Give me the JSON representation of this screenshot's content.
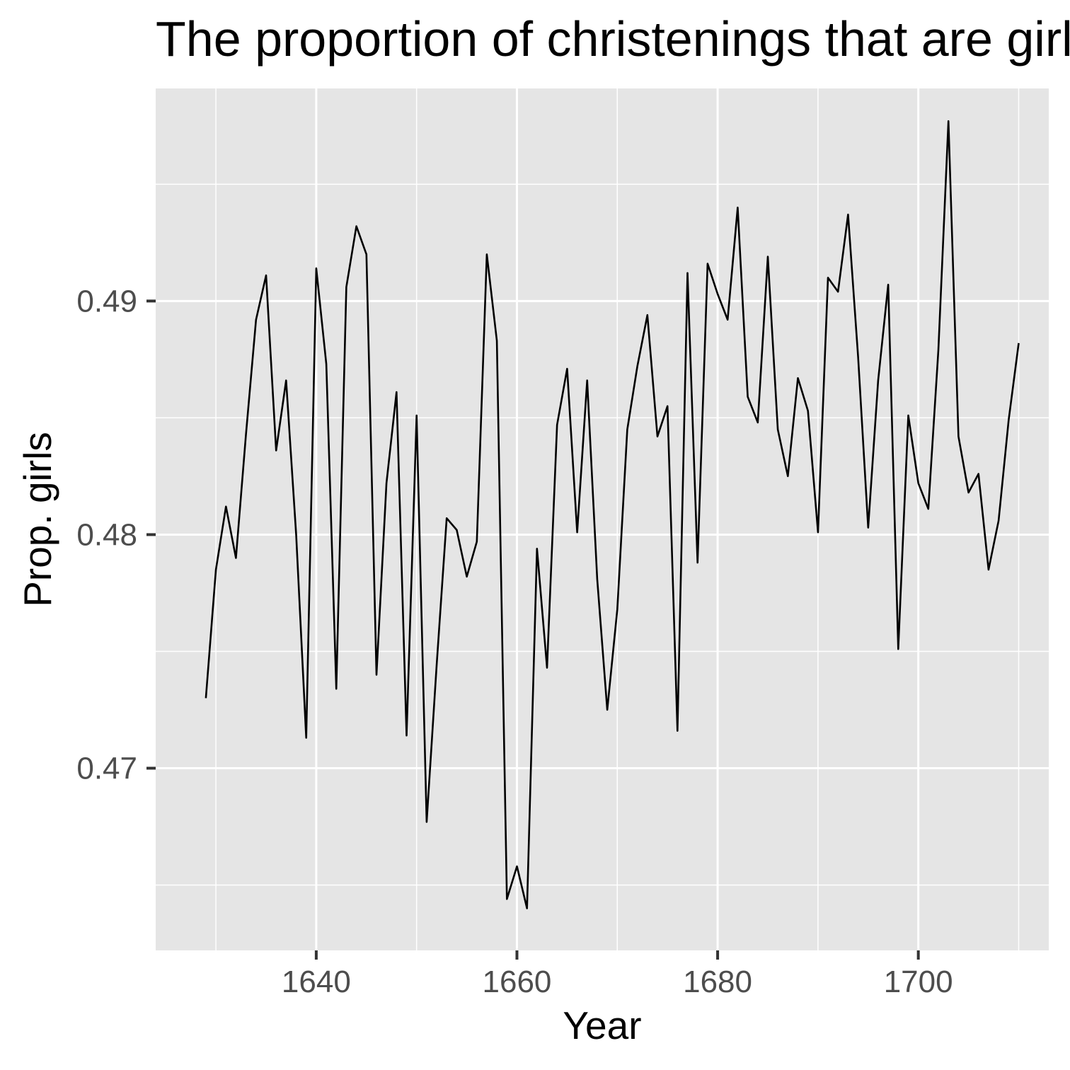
{
  "chart_data": {
    "type": "line",
    "title": "The proportion of christenings that are girls",
    "xlabel": "Year",
    "ylabel": "Prop. girls",
    "xlim": [
      1624,
      1713
    ],
    "ylim": [
      0.4622,
      0.4991
    ],
    "x_ticks": [
      1640,
      1660,
      1680,
      1700
    ],
    "x_tick_labels": [
      "1640",
      "1660",
      "1680",
      "1700"
    ],
    "x_minor_ticks": [
      1630,
      1650,
      1670,
      1690,
      1710
    ],
    "y_ticks": [
      0.47,
      0.48,
      0.49
    ],
    "y_tick_labels": [
      "0.47",
      "0.48",
      "0.49"
    ],
    "y_minor_ticks": [
      0.465,
      0.475,
      0.485,
      0.495
    ],
    "grid": true,
    "panel_background": "#e5e5e5",
    "grid_color": "#ffffff",
    "line_color": "#000000",
    "series": [
      {
        "x": [
          1629,
          1630,
          1631,
          1632,
          1633,
          1634,
          1635,
          1636,
          1637,
          1638,
          1639,
          1640,
          1641,
          1642,
          1643,
          1644,
          1645,
          1646,
          1647,
          1648,
          1649,
          1650,
          1651,
          1652,
          1653,
          1654,
          1655,
          1656,
          1657,
          1658,
          1659,
          1660,
          1661,
          1662,
          1663,
          1664,
          1665,
          1666,
          1667,
          1668,
          1669,
          1670,
          1671,
          1672,
          1673,
          1674,
          1675,
          1676,
          1677,
          1678,
          1679,
          1680,
          1681,
          1682,
          1683,
          1684,
          1685,
          1686,
          1687,
          1688,
          1689,
          1690,
          1691,
          1692,
          1693,
          1694,
          1695,
          1696,
          1697,
          1698,
          1699,
          1700,
          1701,
          1702,
          1703,
          1704,
          1705,
          1706,
          1707,
          1708,
          1709,
          1710
        ],
        "values": [
          0.473,
          0.4785,
          0.4812,
          0.479,
          0.4843,
          0.4892,
          0.4911,
          0.4836,
          0.4866,
          0.48,
          0.4713,
          0.4914,
          0.4873,
          0.4734,
          0.4906,
          0.4932,
          0.492,
          0.474,
          0.4822,
          0.4861,
          0.4714,
          0.4851,
          0.4677,
          0.4744,
          0.4807,
          0.4802,
          0.4782,
          0.4797,
          0.492,
          0.4883,
          0.4644,
          0.4658,
          0.464,
          0.4794,
          0.4743,
          0.4847,
          0.4871,
          0.4801,
          0.4866,
          0.4781,
          0.4725,
          0.4768,
          0.4845,
          0.4872,
          0.4894,
          0.4842,
          0.4855,
          0.4716,
          0.4912,
          0.4788,
          0.4916,
          0.4903,
          0.4892,
          0.494,
          0.4859,
          0.4848,
          0.4919,
          0.4845,
          0.4825,
          0.4867,
          0.4853,
          0.4801,
          0.491,
          0.4904,
          0.4937,
          0.4876,
          0.4803,
          0.4866,
          0.4907,
          0.4751,
          0.4851,
          0.4822,
          0.4811,
          0.4879,
          0.4977,
          0.4842,
          0.4818,
          0.4826,
          0.4785,
          0.4806,
          0.4849,
          0.4882
        ]
      }
    ]
  }
}
